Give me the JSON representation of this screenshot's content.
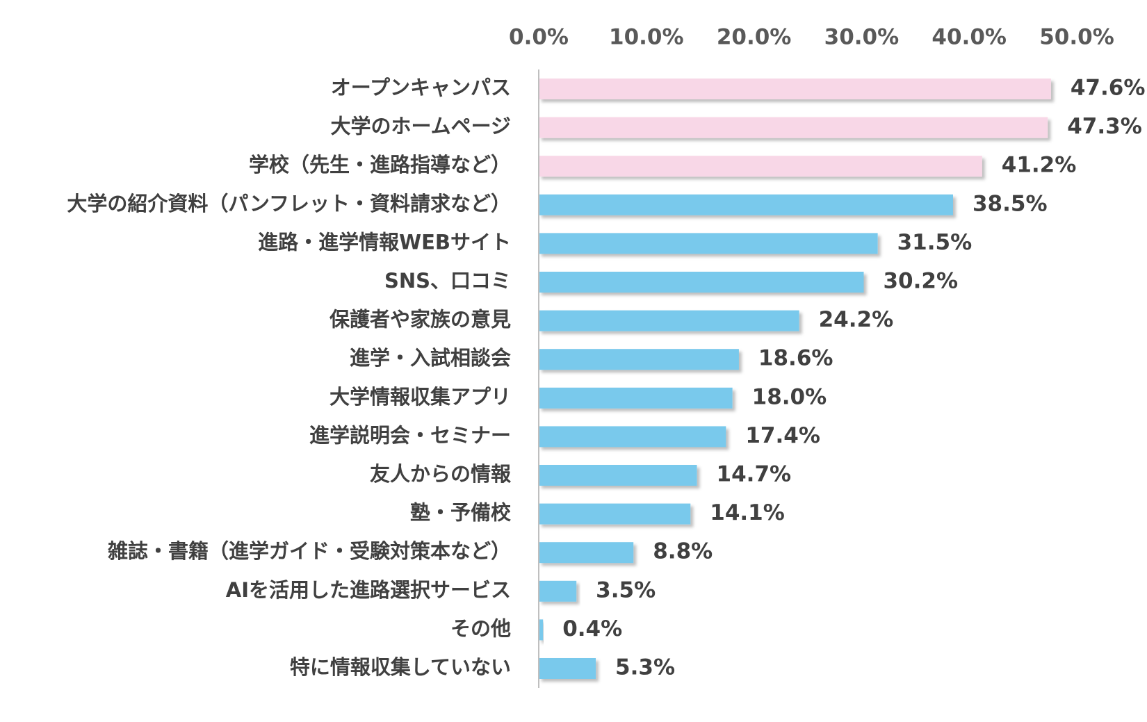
{
  "chart_data": {
    "type": "bar",
    "orientation": "horizontal",
    "title": "",
    "xlabel": "",
    "ylabel": "",
    "xlim": [
      0,
      50
    ],
    "tick_values": [
      0,
      10,
      20,
      30,
      40,
      50
    ],
    "tick_labels": [
      "0.0%",
      "10.0%",
      "20.0%",
      "30.0%",
      "40.0%",
      "50.0%"
    ],
    "axis_position": "top",
    "grid": false,
    "legend": "none",
    "categories": [
      "オープンキャンパス",
      "大学のホームページ",
      "学校（先生・進路指導など）",
      "大学の紹介資料（パンフレット・資料請求など）",
      "進路・進学情報WEBサイト",
      "SNS、口コミ",
      "保護者や家族の意見",
      "進学・入試相談会",
      "大学情報収集アプリ",
      "進学説明会・セミナー",
      "友人からの情報",
      "塾・予備校",
      "雑誌・書籍（進学ガイド・受験対策本など）",
      "AIを活用した進路選択サービス",
      "その他",
      "特に情報収集していない"
    ],
    "values": [
      47.6,
      47.3,
      41.2,
      38.5,
      31.5,
      30.2,
      24.2,
      18.6,
      18.0,
      17.4,
      14.7,
      14.1,
      8.8,
      3.5,
      0.4,
      5.3
    ],
    "value_labels": [
      "47.6%",
      "47.3%",
      "41.2%",
      "38.5%",
      "31.5%",
      "30.2%",
      "24.2%",
      "18.6%",
      "18.0%",
      "17.4%",
      "14.7%",
      "14.1%",
      "8.8%",
      "3.5%",
      "0.4%",
      "5.3%"
    ],
    "bar_colors": [
      "#f8d7e7",
      "#f8d7e7",
      "#f8d7e7",
      "#79c9ec",
      "#79c9ec",
      "#79c9ec",
      "#79c9ec",
      "#79c9ec",
      "#79c9ec",
      "#79c9ec",
      "#79c9ec",
      "#79c9ec",
      "#79c9ec",
      "#79c9ec",
      "#79c9ec",
      "#79c9ec"
    ],
    "axis_color": "#bfbfbf"
  }
}
